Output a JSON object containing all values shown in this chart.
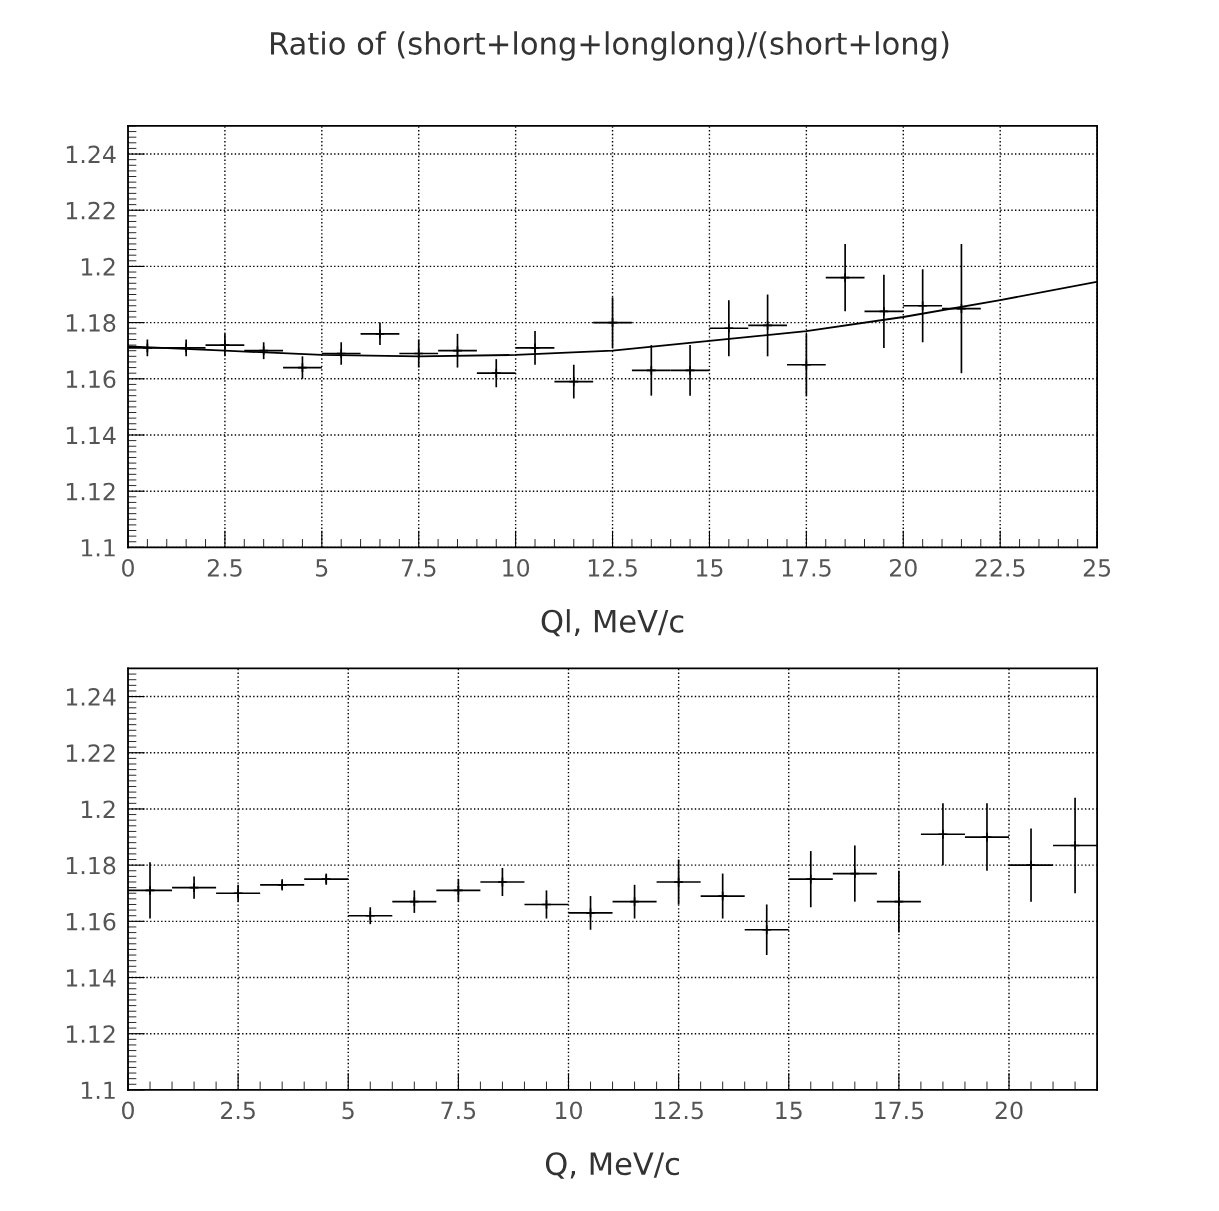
{
  "chart_data": [
    {
      "type": "scatter",
      "title": "Ratio of (short+long+longlong)/(short+long)",
      "xlabel": "Ql, MeV/c",
      "xlim": [
        0,
        25
      ],
      "xticks": [
        0,
        2.5,
        5,
        7.5,
        10,
        12.5,
        15,
        17.5,
        20,
        22.5,
        25
      ],
      "ylim": [
        1.1,
        1.25
      ],
      "yticks": [
        1.1,
        1.12,
        1.14,
        1.16,
        1.18,
        1.2,
        1.22,
        1.24
      ],
      "grid": true,
      "marker": "cross",
      "series": [
        {
          "color": "#000000",
          "x": [
            0.5,
            1.5,
            2.5,
            3.5,
            4.5,
            5.5,
            6.5,
            7.5,
            8.5,
            9.5,
            10.5,
            11.5,
            12.5,
            13.5,
            14.5,
            15.5,
            16.5,
            17.5,
            18.5,
            19.5,
            20.5,
            21.5
          ],
          "values": [
            1.171,
            1.171,
            1.172,
            1.17,
            1.164,
            1.169,
            1.176,
            1.169,
            1.17,
            1.162,
            1.171,
            1.159,
            1.18,
            1.163,
            1.163,
            1.178,
            1.179,
            1.165,
            1.196,
            1.184,
            1.186,
            1.185
          ],
          "errors": [
            0.003,
            0.003,
            0.004,
            0.003,
            0.004,
            0.004,
            0.004,
            0.005,
            0.006,
            0.005,
            0.006,
            0.006,
            0.009,
            0.009,
            0.009,
            0.01,
            0.011,
            0.011,
            0.012,
            0.013,
            0.013,
            0.023
          ],
          "xerrors": [
            0.5,
            0.5,
            0.5,
            0.5,
            0.5,
            0.5,
            0.5,
            0.5,
            0.5,
            0.5,
            0.5,
            0.5,
            0.5,
            0.5,
            0.5,
            0.5,
            0.5,
            0.5,
            0.5,
            0.5,
            0.5,
            0.5
          ]
        },
        {
          "type": "line",
          "color": "#000000",
          "line_style": "solid",
          "marker": "none",
          "x": [
            0,
            2.5,
            5,
            7.5,
            10,
            12.5,
            15,
            17.5,
            20,
            22.5,
            25
          ],
          "values": [
            1.1715,
            1.17,
            1.1685,
            1.168,
            1.1685,
            1.17,
            1.1735,
            1.177,
            1.182,
            1.188,
            1.1945
          ]
        }
      ]
    },
    {
      "type": "scatter",
      "xlabel": "Q, MeV/c",
      "xlim": [
        0,
        22
      ],
      "xticks": [
        0,
        2.5,
        5,
        7.5,
        10,
        12.5,
        15,
        17.5,
        20
      ],
      "ylim": [
        1.1,
        1.25
      ],
      "yticks": [
        1.1,
        1.12,
        1.14,
        1.16,
        1.18,
        1.2,
        1.22,
        1.24
      ],
      "grid": true,
      "marker": "cross",
      "series": [
        {
          "color": "#000000",
          "x": [
            0.5,
            1.5,
            2.5,
            3.5,
            4.5,
            5.5,
            6.5,
            7.5,
            8.5,
            9.5,
            10.5,
            11.5,
            12.5,
            13.5,
            14.5,
            15.5,
            16.5,
            17.5,
            18.5,
            19.5,
            20.5,
            21.5
          ],
          "values": [
            1.171,
            1.172,
            1.17,
            1.173,
            1.175,
            1.162,
            1.167,
            1.171,
            1.174,
            1.166,
            1.163,
            1.167,
            1.174,
            1.169,
            1.157,
            1.175,
            1.177,
            1.167,
            1.191,
            1.19,
            1.18,
            1.187
          ],
          "errors": [
            0.01,
            0.004,
            0.003,
            0.002,
            0.002,
            0.003,
            0.004,
            0.004,
            0.005,
            0.005,
            0.006,
            0.006,
            0.008,
            0.008,
            0.009,
            0.01,
            0.01,
            0.011,
            0.011,
            0.012,
            0.013,
            0.017
          ],
          "xerrors": [
            0.5,
            0.5,
            0.5,
            0.5,
            0.5,
            0.5,
            0.5,
            0.5,
            0.5,
            0.5,
            0.5,
            0.5,
            0.5,
            0.5,
            0.5,
            0.5,
            0.5,
            0.5,
            0.5,
            0.5,
            0.5,
            0.5
          ]
        }
      ]
    }
  ]
}
